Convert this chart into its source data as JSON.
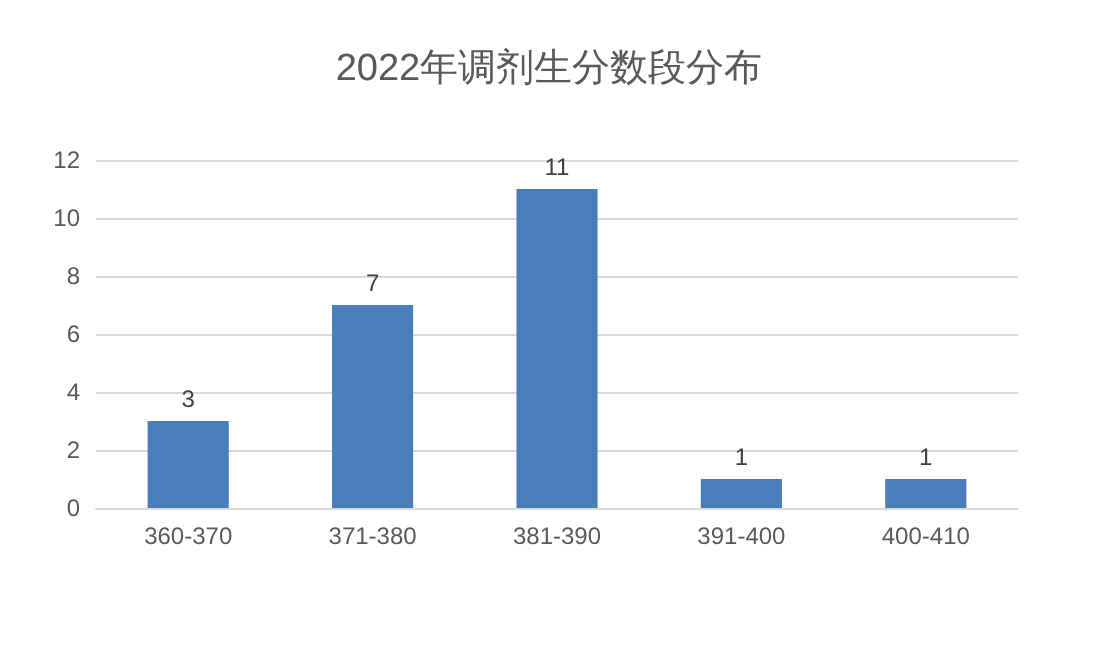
{
  "chart_data": {
    "type": "bar",
    "title": "2022年调剂生分数段分布",
    "categories": [
      "360-370",
      "371-380",
      "381-390",
      "391-400",
      "400-410"
    ],
    "values": [
      3,
      7,
      11,
      1,
      1
    ],
    "color": "#4a7ebb",
    "ylim": [
      0,
      12
    ],
    "yticks": [
      0,
      2,
      4,
      6,
      8,
      10,
      12
    ],
    "grid": "y",
    "data_labels": true
  }
}
